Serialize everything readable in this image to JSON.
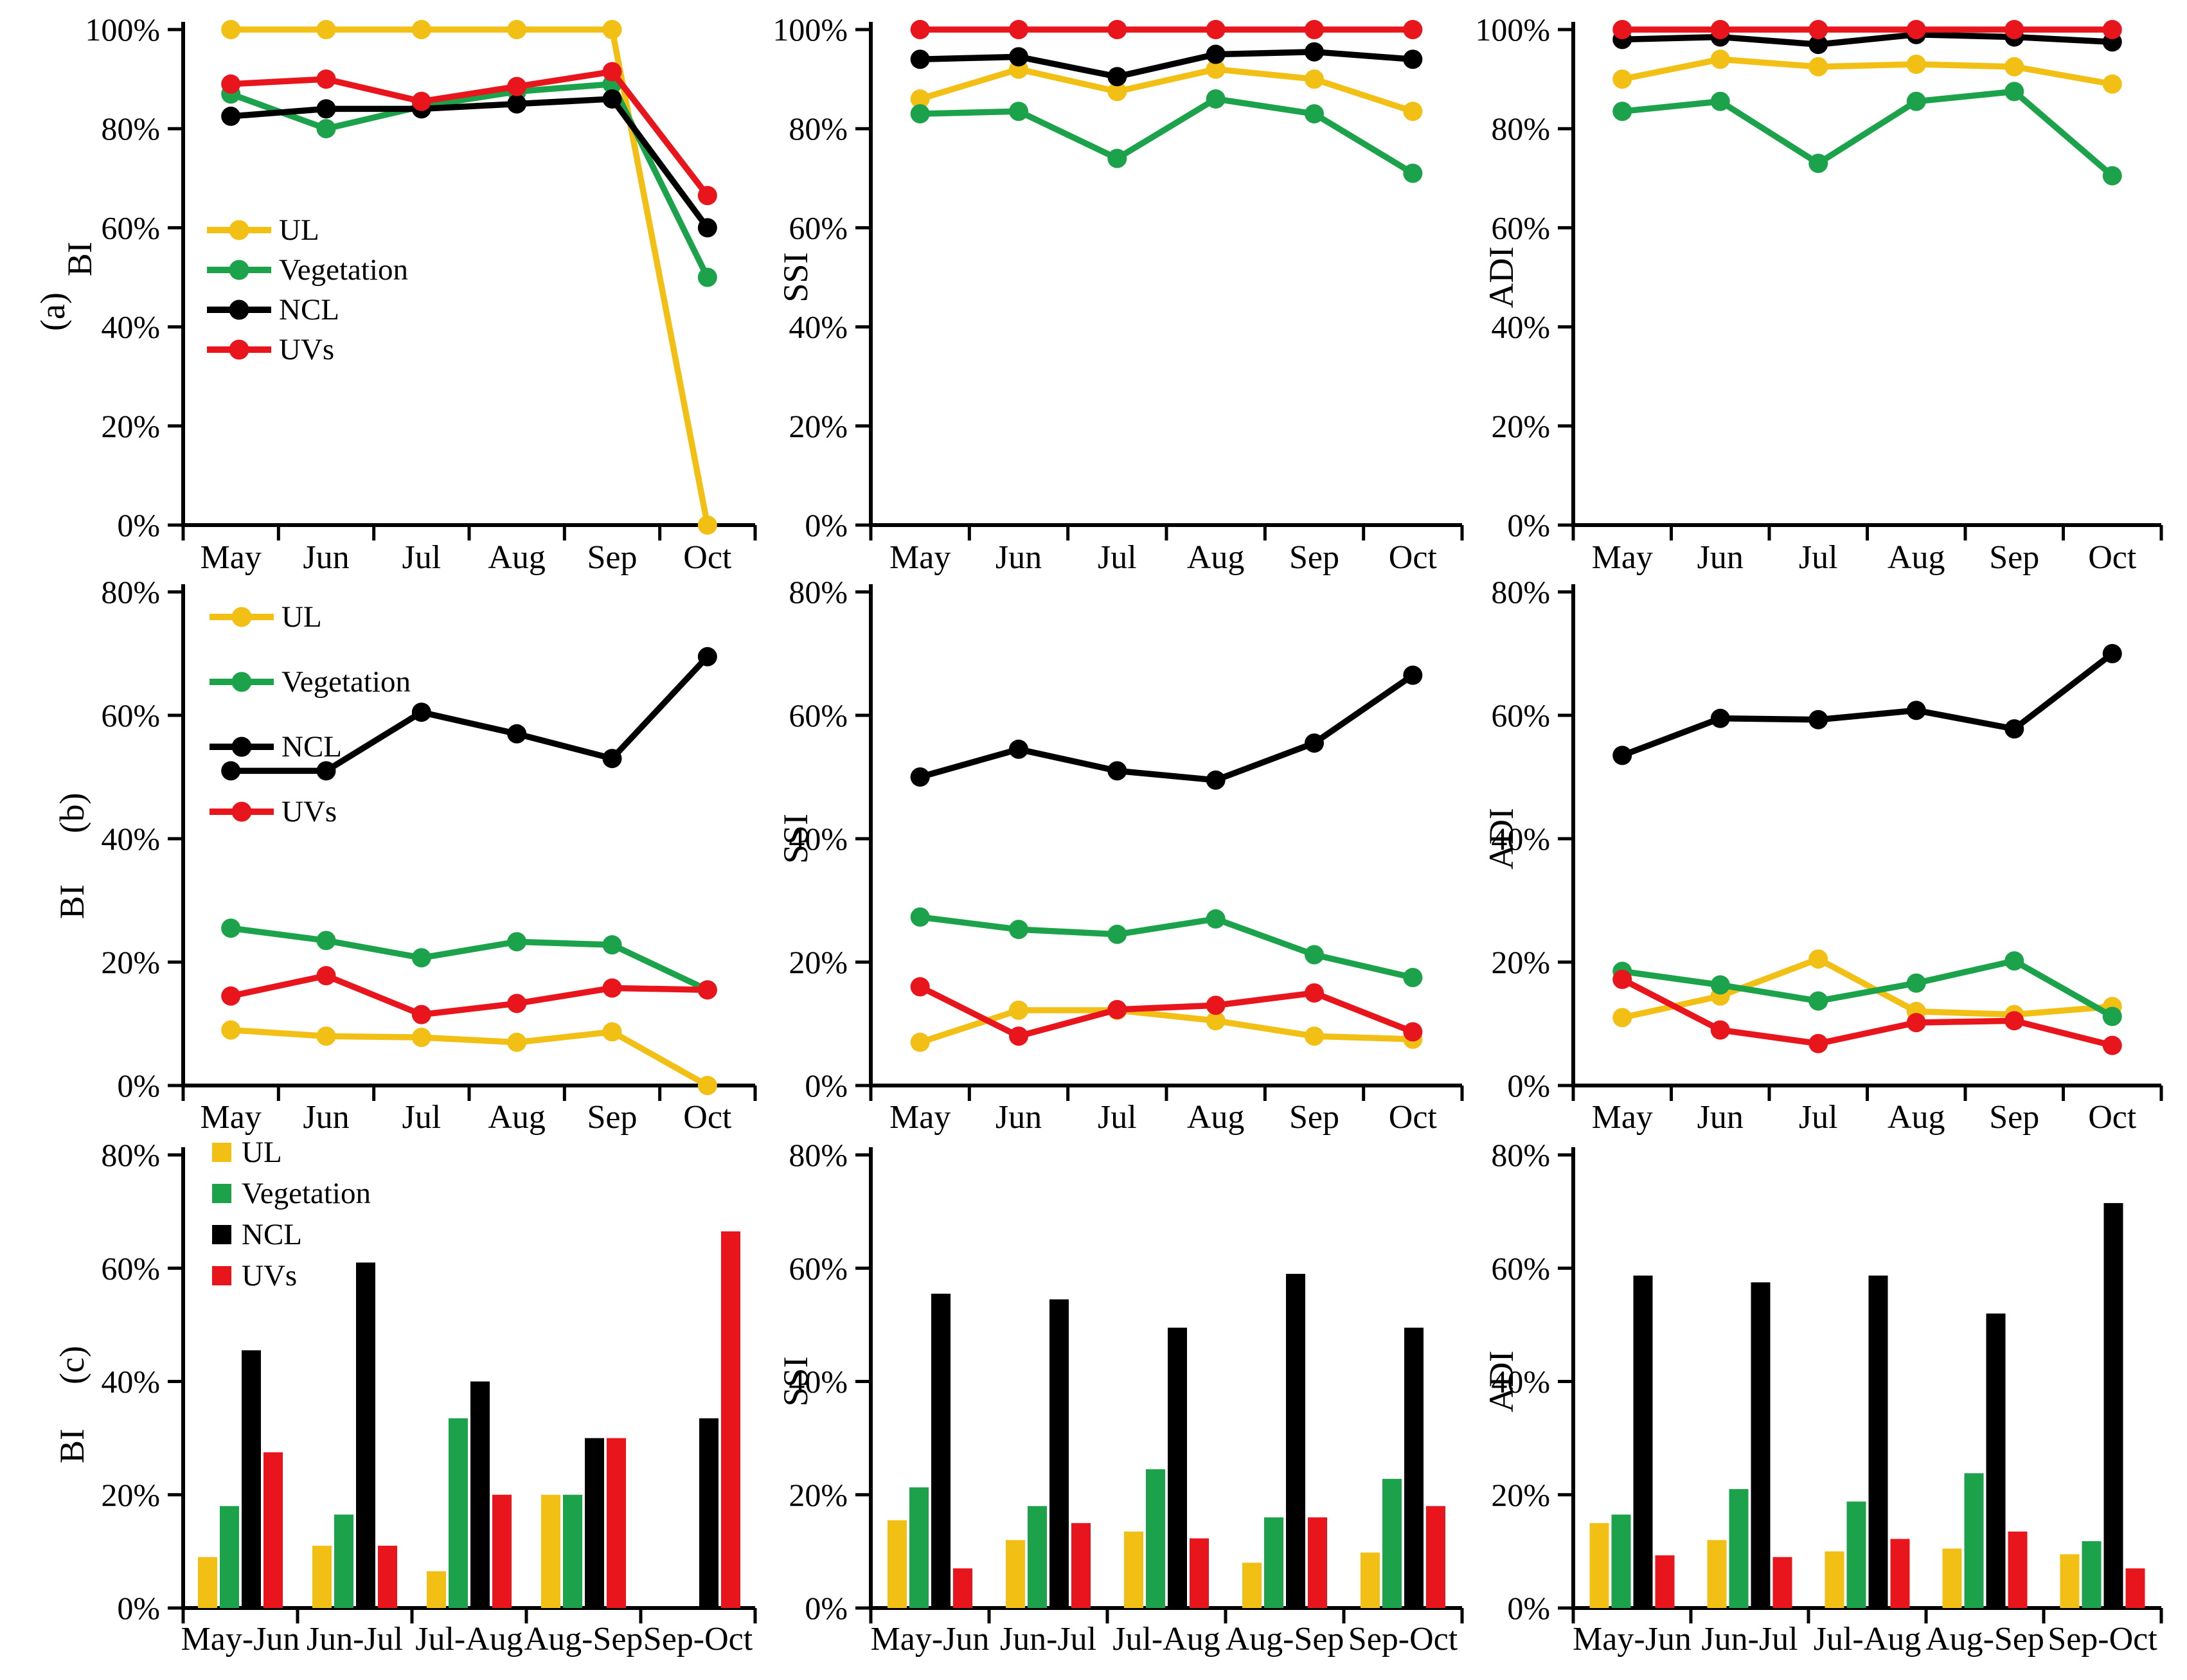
{
  "page": {
    "background": "#FFFFFF"
  },
  "chart_data": {
    "type": "multi-panel",
    "layout": "3x3",
    "grid": false,
    "series_colors": {
      "UL": "#F2C014",
      "Vegetation": "#1CA24A",
      "NCL": "#000000",
      "UVs": "#E8151C"
    },
    "legend_entries": [
      "UL",
      "Vegetation",
      "NCL",
      "UVs"
    ],
    "panels": [
      {
        "id": "a-bi",
        "panel_label": "(a)",
        "ylabel": "BI",
        "type": "line",
        "legend": true,
        "categories": [
          "May",
          "Jun",
          "Jul",
          "Aug",
          "Sep",
          "Oct"
        ],
        "ylim": [
          0,
          100
        ],
        "ytick_values": [
          0,
          20,
          40,
          60,
          80,
          100
        ],
        "ytick_labels": [
          "0%",
          "20%",
          "40%",
          "60%",
          "80%",
          "100%"
        ],
        "series": [
          {
            "name": "UL",
            "values": [
              100,
              100,
              100,
              100,
              100,
              0
            ]
          },
          {
            "name": "Vegetation",
            "values": [
              87,
              80,
              84.5,
              87.5,
              89,
              50
            ]
          },
          {
            "name": "NCL",
            "values": [
              82.5,
              84,
              84,
              85,
              86,
              60
            ]
          },
          {
            "name": "UVs",
            "values": [
              89,
              90,
              85.5,
              88.5,
              91.5,
              66.5
            ]
          }
        ]
      },
      {
        "id": "a-ssi",
        "panel_label": "",
        "ylabel": "SSI",
        "type": "line",
        "legend": false,
        "categories": [
          "May",
          "Jun",
          "Jul",
          "Aug",
          "Sep",
          "Oct"
        ],
        "ylim": [
          0,
          100
        ],
        "ytick_values": [
          0,
          20,
          40,
          60,
          80,
          100
        ],
        "ytick_labels": [
          "0%",
          "20%",
          "40%",
          "60%",
          "80%",
          "100%"
        ],
        "series": [
          {
            "name": "UL",
            "values": [
              86,
              92,
              87.5,
              92,
              90,
              83.5
            ]
          },
          {
            "name": "Vegetation",
            "values": [
              83,
              83.5,
              74,
              86,
              83,
              71
            ]
          },
          {
            "name": "NCL",
            "values": [
              94,
              94.5,
              90.5,
              95,
              95.5,
              94
            ]
          },
          {
            "name": "UVs",
            "values": [
              100,
              100,
              100,
              100,
              100,
              100
            ]
          }
        ]
      },
      {
        "id": "a-adi",
        "panel_label": "",
        "ylabel": "ADI",
        "type": "line",
        "legend": false,
        "categories": [
          "May",
          "Jun",
          "Jul",
          "Aug",
          "Sep",
          "Oct"
        ],
        "ylim": [
          0,
          100
        ],
        "ytick_values": [
          0,
          20,
          40,
          60,
          80,
          100
        ],
        "ytick_labels": [
          "0%",
          "20%",
          "40%",
          "60%",
          "80%",
          "100%"
        ],
        "series": [
          {
            "name": "UL",
            "values": [
              90,
              94,
              92.5,
              93,
              92.5,
              89
            ]
          },
          {
            "name": "Vegetation",
            "values": [
              83.5,
              85.5,
              73,
              85.5,
              87.5,
              70.5
            ]
          },
          {
            "name": "NCL",
            "values": [
              98,
              98.5,
              97,
              99,
              98.5,
              97.5
            ]
          },
          {
            "name": "UVs",
            "values": [
              100,
              100,
              100,
              100,
              100,
              100
            ]
          }
        ]
      },
      {
        "id": "b-bi",
        "panel_label": "(b)",
        "ylabel": "BI",
        "type": "line",
        "legend": true,
        "categories": [
          "May",
          "Jun",
          "Jul",
          "Aug",
          "Sep",
          "Oct"
        ],
        "ylim": [
          0,
          80
        ],
        "ytick_values": [
          0,
          20,
          40,
          60,
          80
        ],
        "ytick_labels": [
          "0%",
          "20%",
          "40%",
          "60%",
          "80%"
        ],
        "series": [
          {
            "name": "UL",
            "values": [
              9,
              8,
              7.8,
              7,
              8.7,
              0
            ]
          },
          {
            "name": "Vegetation",
            "values": [
              25.5,
              23.5,
              20.7,
              23.3,
              22.8,
              15.5
            ]
          },
          {
            "name": "NCL",
            "values": [
              51,
              51,
              60.5,
              57,
              53,
              69.5
            ]
          },
          {
            "name": "UVs",
            "values": [
              14.5,
              17.8,
              11.5,
              13.3,
              15.8,
              15.5
            ]
          }
        ]
      },
      {
        "id": "b-ssi",
        "panel_label": "",
        "ylabel": "SSI",
        "type": "line",
        "legend": false,
        "categories": [
          "May",
          "Jun",
          "Jul",
          "Aug",
          "Sep",
          "Oct"
        ],
        "ylim": [
          0,
          80
        ],
        "ytick_values": [
          0,
          20,
          40,
          60,
          80
        ],
        "ytick_labels": [
          "0%",
          "20%",
          "40%",
          "60%",
          "80%"
        ],
        "series": [
          {
            "name": "UL",
            "values": [
              7,
              12.2,
              12.2,
              10.5,
              8,
              7.5
            ]
          },
          {
            "name": "Vegetation",
            "values": [
              27.3,
              25.3,
              24.5,
              27,
              21.2,
              17.5
            ]
          },
          {
            "name": "NCL",
            "values": [
              50,
              54.5,
              51,
              49.5,
              55.5,
              66.5
            ]
          },
          {
            "name": "UVs",
            "values": [
              16,
              8,
              12.3,
              13,
              15,
              8.7
            ]
          }
        ]
      },
      {
        "id": "b-adi",
        "panel_label": "",
        "ylabel": "ADI",
        "type": "line",
        "legend": false,
        "categories": [
          "May",
          "Jun",
          "Jul",
          "Aug",
          "Sep",
          "Oct"
        ],
        "ylim": [
          0,
          80
        ],
        "ytick_values": [
          0,
          20,
          40,
          60,
          80
        ],
        "ytick_labels": [
          "0%",
          "20%",
          "40%",
          "60%",
          "80%"
        ],
        "series": [
          {
            "name": "UL",
            "values": [
              11,
              14.5,
              20.5,
              12,
              11.5,
              12.8
            ]
          },
          {
            "name": "Vegetation",
            "values": [
              18.5,
              16.3,
              13.7,
              16.6,
              20.2,
              11.2
            ]
          },
          {
            "name": "NCL",
            "values": [
              53.5,
              59.5,
              59.3,
              60.8,
              57.8,
              70
            ]
          },
          {
            "name": "UVs",
            "values": [
              17.2,
              9,
              6.8,
              10.2,
              10.5,
              6.5
            ]
          }
        ]
      },
      {
        "id": "c-bi",
        "panel_label": "(c)",
        "ylabel": "BI",
        "type": "bar",
        "legend": true,
        "categories": [
          "May-Jun",
          "Jun-Jul",
          "Jul-Aug",
          "Aug-Sep",
          "Sep-Oct"
        ],
        "ylim": [
          0,
          80
        ],
        "ytick_values": [
          0,
          20,
          40,
          60,
          80
        ],
        "ytick_labels": [
          "0%",
          "20%",
          "40%",
          "60%",
          "80%"
        ],
        "series": [
          {
            "name": "UL",
            "values": [
              9,
              11,
              6.5,
              20,
              0
            ]
          },
          {
            "name": "Vegetation",
            "values": [
              18,
              16.5,
              33.5,
              20,
              0
            ]
          },
          {
            "name": "NCL",
            "values": [
              45.5,
              61,
              40,
              30,
              33.5
            ]
          },
          {
            "name": "UVs",
            "values": [
              27.5,
              11,
              20,
              30,
              66.5
            ]
          }
        ]
      },
      {
        "id": "c-ssi",
        "panel_label": "",
        "ylabel": "SSI",
        "type": "bar",
        "legend": false,
        "categories": [
          "May-Jun",
          "Jun-Jul",
          "Jul-Aug",
          "Aug-Sep",
          "Sep-Oct"
        ],
        "ylim": [
          0,
          80
        ],
        "ytick_values": [
          0,
          20,
          40,
          60,
          80
        ],
        "ytick_labels": [
          "0%",
          "20%",
          "40%",
          "60%",
          "80%"
        ],
        "series": [
          {
            "name": "UL",
            "values": [
              15.5,
              12,
              13.5,
              8,
              9.8
            ]
          },
          {
            "name": "Vegetation",
            "values": [
              21.3,
              18,
              24.5,
              16,
              22.8
            ]
          },
          {
            "name": "NCL",
            "values": [
              55.5,
              54.5,
              49.5,
              59,
              49.5
            ]
          },
          {
            "name": "UVs",
            "values": [
              7,
              15,
              12.3,
              16,
              18
            ]
          }
        ]
      },
      {
        "id": "c-adi",
        "panel_label": "",
        "ylabel": "ADI",
        "type": "bar",
        "legend": false,
        "categories": [
          "May-Jun",
          "Jun-Jul",
          "Jul-Aug",
          "Aug-Sep",
          "Sep-Oct"
        ],
        "ylim": [
          0,
          80
        ],
        "ytick_values": [
          0,
          20,
          40,
          60,
          80
        ],
        "ytick_labels": [
          "0%",
          "20%",
          "40%",
          "60%",
          "80%"
        ],
        "series": [
          {
            "name": "UL",
            "values": [
              15,
              12,
              10,
              10.5,
              9.5
            ]
          },
          {
            "name": "Vegetation",
            "values": [
              16.5,
              21,
              18.8,
              23.8,
              11.8
            ]
          },
          {
            "name": "NCL",
            "values": [
              58.7,
              57.5,
              58.7,
              52,
              71.5
            ]
          },
          {
            "name": "UVs",
            "values": [
              9.3,
              9,
              12.2,
              13.5,
              7
            ]
          }
        ]
      }
    ]
  }
}
